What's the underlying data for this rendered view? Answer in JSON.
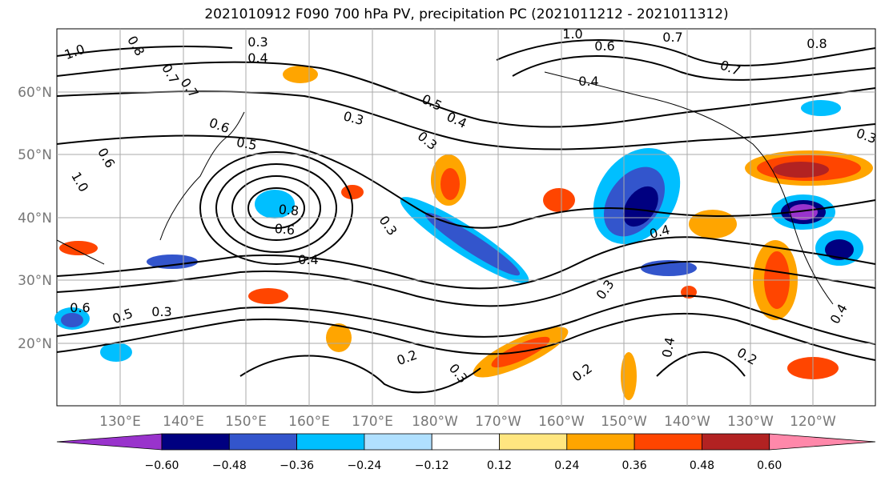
{
  "title": "2021010912 F090 700 hPa PV, precipitation PC (2021011212 - 2021011312)",
  "lat_labels": [
    "60°N",
    "50°N",
    "40°N",
    "30°N",
    "20°N"
  ],
  "lon_labels": [
    "130°E",
    "140°E",
    "150°E",
    "160°E",
    "170°E",
    "180°W",
    "170°W",
    "160°W",
    "150°W",
    "140°W",
    "130°W",
    "120°W"
  ],
  "colorbar": {
    "colors": [
      "#9933cc",
      "#000080",
      "#3355cc",
      "#00bfff",
      "#b0e0ff",
      "#ffffff",
      "#ffe680",
      "#ffa500",
      "#ff4500",
      "#b22222",
      "#ff88aa"
    ],
    "tick_labels": [
      "−0.60",
      "−0.48",
      "−0.36",
      "−0.24",
      "−0.12",
      "0.12",
      "0.24",
      "0.36",
      "0.48",
      "0.60"
    ]
  },
  "contour_labels": [
    "1.0",
    "0.3",
    "0.4",
    "0.8",
    "0.7",
    "0.6",
    "0.5",
    "0.7",
    "0.3",
    "0.5",
    "0.4",
    "0.6",
    "0.8",
    "0.6",
    "0.4",
    "0.3",
    "0.3",
    "0.2",
    "0.3",
    "0.2",
    "0.3",
    "0.4",
    "0.4",
    "0.2",
    "0.4",
    "0.3",
    "0.7",
    "0.6",
    "0.4",
    "0.7",
    "0.8",
    "1.0",
    "1.0",
    "0.6",
    "0.5",
    "0.3"
  ],
  "colors": {
    "grid": "#aaaaaa",
    "contour": "#000000",
    "axis_label": "#777777"
  }
}
